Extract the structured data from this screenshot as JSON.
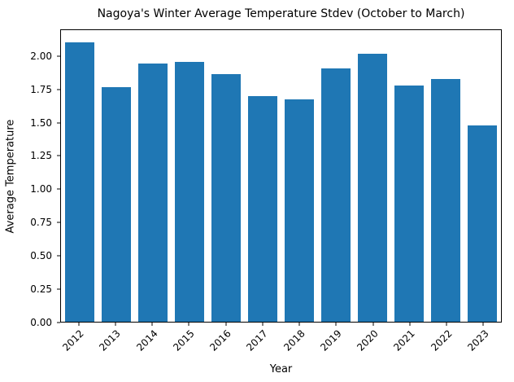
{
  "chart_data": {
    "type": "bar",
    "title": "Nagoya's Winter Average Temperature Stdev (October to March)",
    "xlabel": "Year",
    "ylabel": "Average Temperature",
    "categories": [
      "2012",
      "2013",
      "2014",
      "2015",
      "2016",
      "2017",
      "2018",
      "2019",
      "2020",
      "2021",
      "2022",
      "2023"
    ],
    "values": [
      2.11,
      1.77,
      1.95,
      1.96,
      1.87,
      1.7,
      1.68,
      1.91,
      2.02,
      1.78,
      1.83,
      1.48
    ],
    "ylim": [
      0,
      2.2
    ],
    "yticks": [
      0.0,
      0.25,
      0.5,
      0.75,
      1.0,
      1.25,
      1.5,
      1.75,
      2.0
    ],
    "ytick_format_decimals": 2,
    "bar_color": "#1f77b4",
    "bar_width_fraction": 0.8,
    "grid": false,
    "legend": null,
    "x_tick_rotation_deg": 45
  }
}
